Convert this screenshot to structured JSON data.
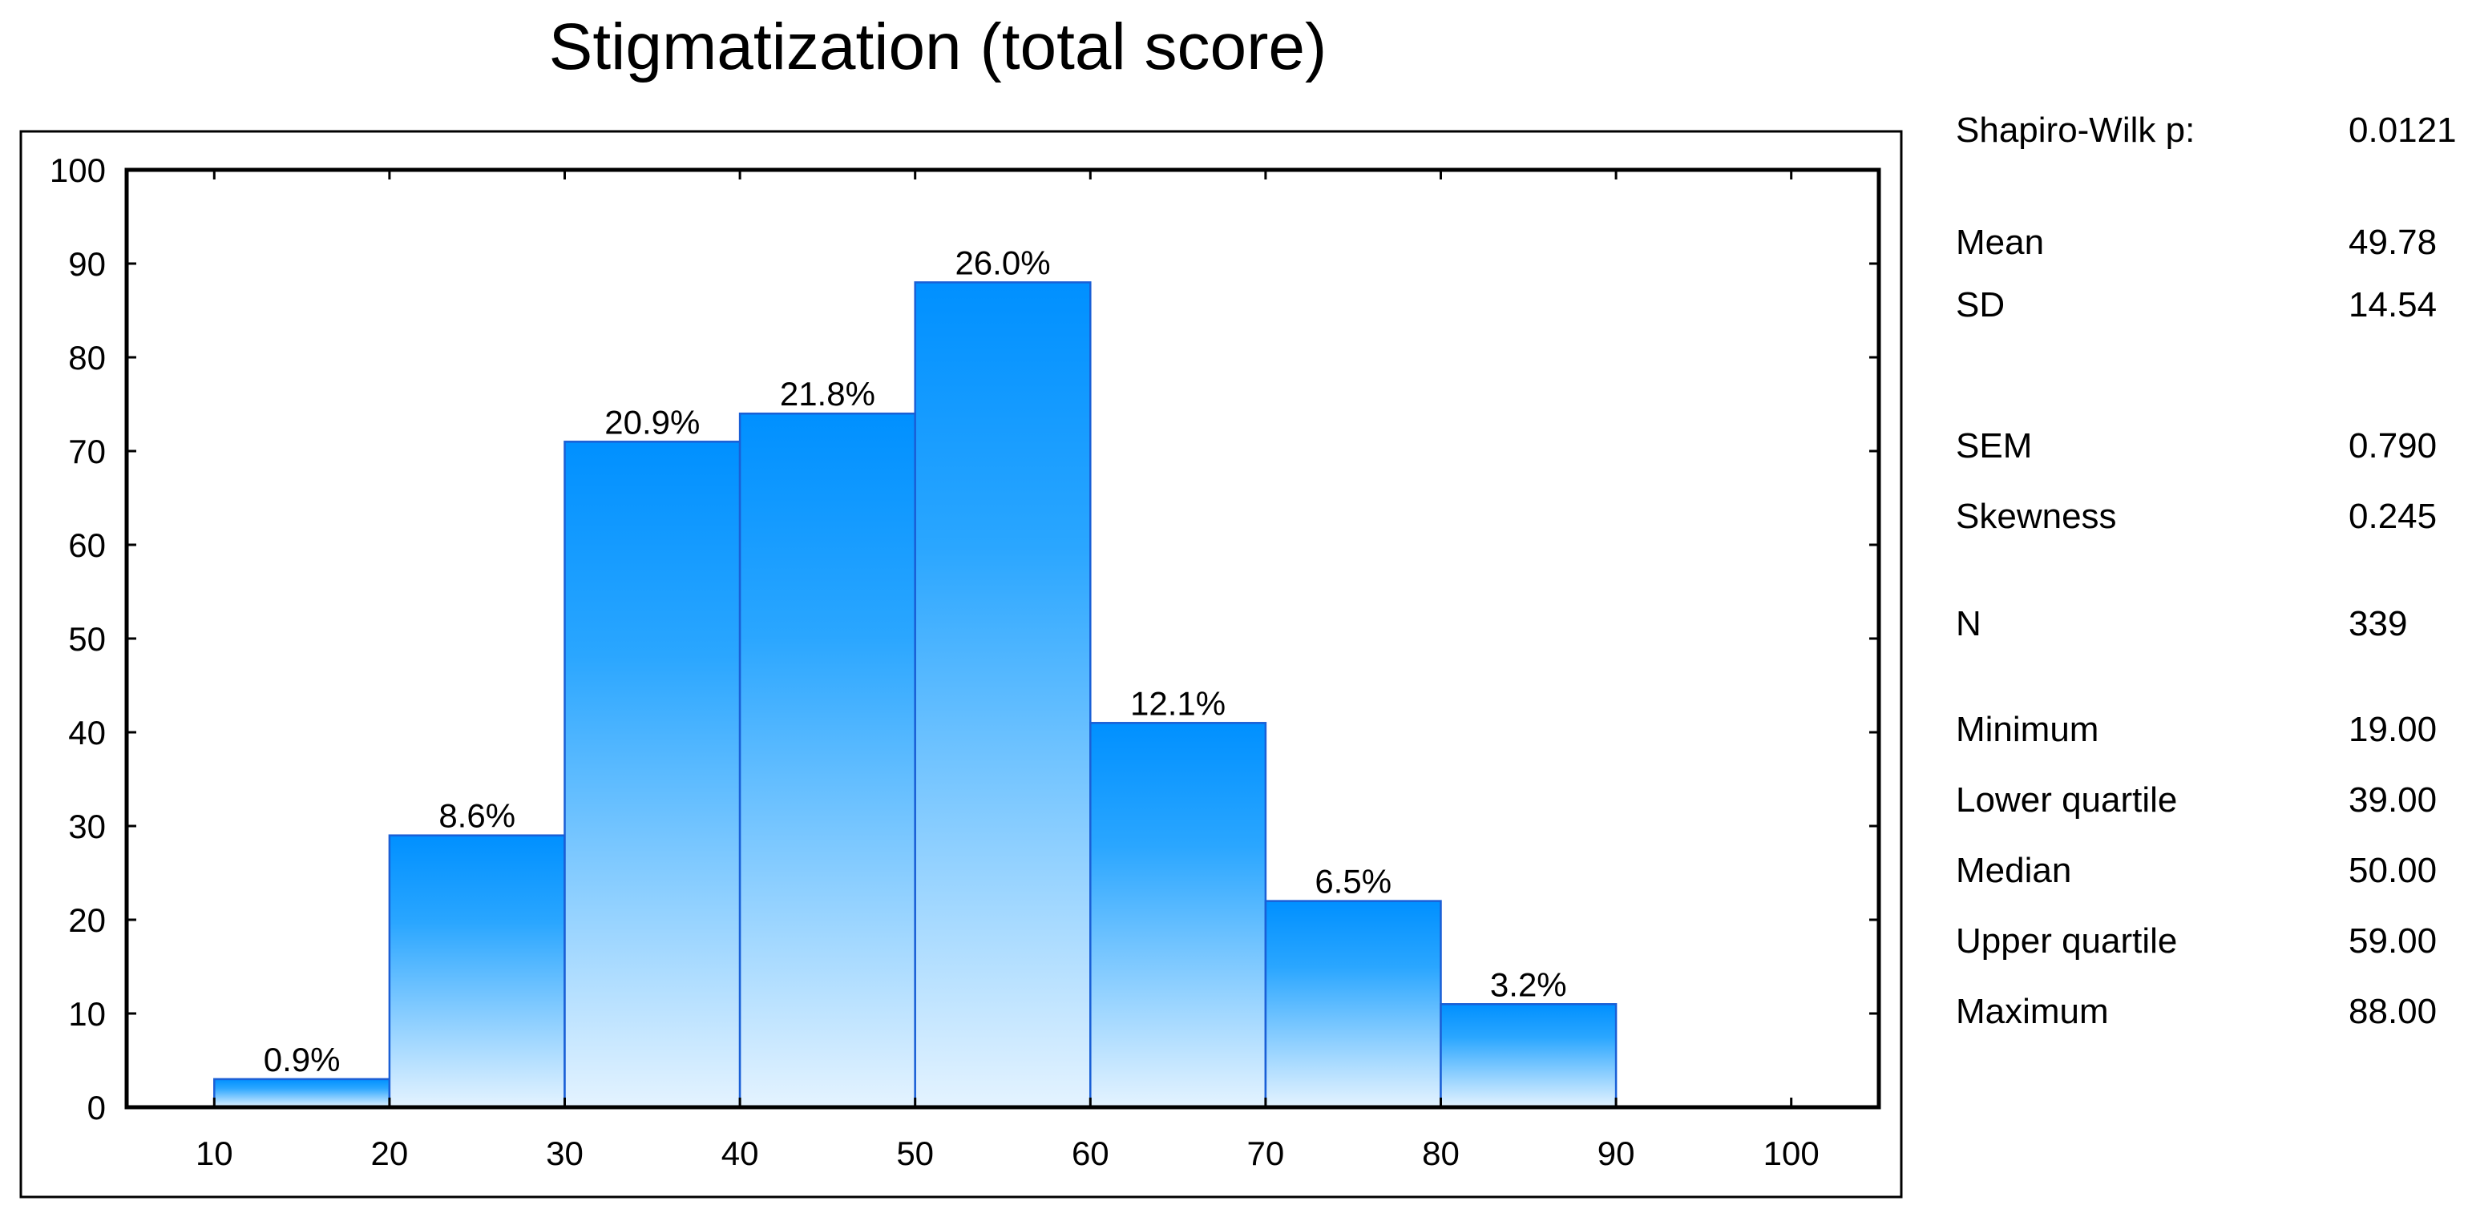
{
  "chart_data": {
    "type": "bar",
    "title": "Stigmatization (total score)",
    "xlabel": "",
    "ylabel": "",
    "bins": [
      [
        10,
        20
      ],
      [
        20,
        30
      ],
      [
        30,
        40
      ],
      [
        40,
        50
      ],
      [
        50,
        60
      ],
      [
        60,
        70
      ],
      [
        70,
        80
      ],
      [
        80,
        90
      ]
    ],
    "values": [
      3,
      29,
      71,
      74,
      88,
      41,
      22,
      11
    ],
    "bar_labels": [
      "0.9%",
      "8.6%",
      "20.9%",
      "21.8%",
      "26.0%",
      "12.1%",
      "6.5%",
      "3.2%"
    ],
    "xlim": [
      5,
      105
    ],
    "ylim": [
      0,
      100
    ],
    "x_ticks": [
      10,
      20,
      30,
      40,
      50,
      60,
      70,
      80,
      90,
      100
    ],
    "y_ticks": [
      0,
      10,
      20,
      30,
      40,
      50,
      60,
      70,
      80,
      90,
      100
    ],
    "grid": false,
    "colors": {
      "bar_top": "#0090ff",
      "bar_bottom": "#e4f3ff",
      "bar_stroke": "#1a5fd6",
      "frame": "#000000"
    }
  },
  "stats": [
    {
      "label": "Shapiro-Wilk p:",
      "value": "0.0121"
    },
    {
      "label": "Mean",
      "value": "49.78"
    },
    {
      "label": "SD",
      "value": "14.54"
    },
    {
      "label": "SEM",
      "value": "0.790"
    },
    {
      "label": "Skewness",
      "value": "0.245"
    },
    {
      "label": "N",
      "value": "339"
    },
    {
      "label": "Minimum",
      "value": "19.00"
    },
    {
      "label": "Lower quartile",
      "value": "39.00"
    },
    {
      "label": "Median",
      "value": "50.00"
    },
    {
      "label": "Upper quartile",
      "value": "59.00"
    },
    {
      "label": "Maximum",
      "value": "88.00"
    }
  ]
}
